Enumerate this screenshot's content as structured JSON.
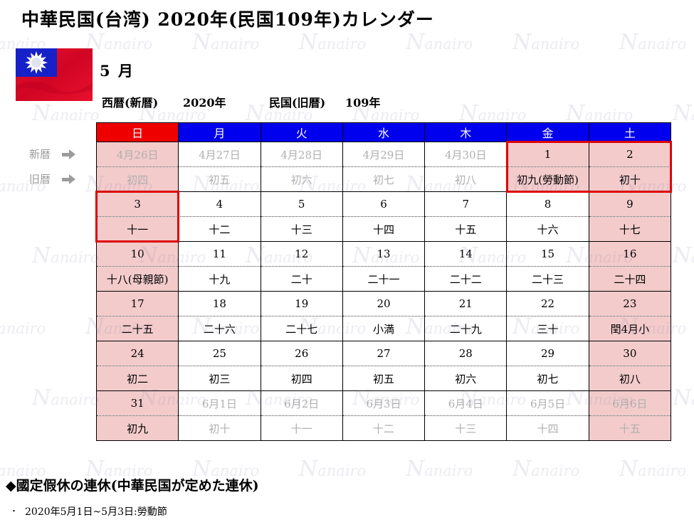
{
  "header": {
    "title": "中華民国(台湾) 2020年(民国109年)カレンダー",
    "month_label": "5 月",
    "western_era_label": "西暦(新暦)",
    "western_era_value": "2020年",
    "minguo_era_label": "民国(旧暦)",
    "minguo_era_value": "109年"
  },
  "flag": {
    "name": "taiwan-flag"
  },
  "row_labels": {
    "solar": "新暦",
    "lunar": "旧暦"
  },
  "colors": {
    "sunday_header_bg": "#ee0000",
    "weekday_header_bg": "#0000ee",
    "weekend_cell_bg": "#f3cbcb",
    "highlight_border": "#dd0000",
    "muted_text": "#afafaf",
    "row_label_text": "#9b9b9b"
  },
  "calendar": {
    "day_headers": [
      {
        "label": "日",
        "type": "sun"
      },
      {
        "label": "月",
        "type": "weekday"
      },
      {
        "label": "火",
        "type": "weekday"
      },
      {
        "label": "水",
        "type": "weekday"
      },
      {
        "label": "木",
        "type": "weekday"
      },
      {
        "label": "金",
        "type": "weekday"
      },
      {
        "label": "土",
        "type": "weekday"
      }
    ],
    "weeks": [
      {
        "dates": [
          {
            "t": "4月26日",
            "muted": true
          },
          {
            "t": "4月27日",
            "muted": true
          },
          {
            "t": "4月28日",
            "muted": true
          },
          {
            "t": "4月29日",
            "muted": true
          },
          {
            "t": "4月30日",
            "muted": true
          },
          {
            "t": "1",
            "holiday": true
          },
          {
            "t": "2",
            "holiday": true
          }
        ],
        "lunar": [
          {
            "t": "初四",
            "muted": true
          },
          {
            "t": "初五",
            "muted": true
          },
          {
            "t": "初六",
            "muted": true
          },
          {
            "t": "初七",
            "muted": true
          },
          {
            "t": "初八",
            "muted": true
          },
          {
            "t": "初九(勞動節)",
            "holiday": true
          },
          {
            "t": "初十",
            "holiday": true
          }
        ]
      },
      {
        "dates": [
          {
            "t": "3"
          },
          {
            "t": "4"
          },
          {
            "t": "5"
          },
          {
            "t": "6"
          },
          {
            "t": "7"
          },
          {
            "t": "8"
          },
          {
            "t": "9"
          }
        ],
        "lunar": [
          {
            "t": "十一"
          },
          {
            "t": "十二"
          },
          {
            "t": "十三"
          },
          {
            "t": "十四"
          },
          {
            "t": "十五"
          },
          {
            "t": "十六"
          },
          {
            "t": "十七"
          }
        ]
      },
      {
        "dates": [
          {
            "t": "10"
          },
          {
            "t": "11"
          },
          {
            "t": "12"
          },
          {
            "t": "13"
          },
          {
            "t": "14"
          },
          {
            "t": "15"
          },
          {
            "t": "16"
          }
        ],
        "lunar": [
          {
            "t": "十八(母親節)"
          },
          {
            "t": "十九"
          },
          {
            "t": "二十"
          },
          {
            "t": "二十一"
          },
          {
            "t": "二十二"
          },
          {
            "t": "二十三"
          },
          {
            "t": "二十四"
          }
        ]
      },
      {
        "dates": [
          {
            "t": "17"
          },
          {
            "t": "18"
          },
          {
            "t": "19"
          },
          {
            "t": "20"
          },
          {
            "t": "21"
          },
          {
            "t": "22"
          },
          {
            "t": "23"
          }
        ],
        "lunar": [
          {
            "t": "二十五"
          },
          {
            "t": "二十六"
          },
          {
            "t": "二十七"
          },
          {
            "t": "小満"
          },
          {
            "t": "二十九"
          },
          {
            "t": "三十"
          },
          {
            "t": "閏4月小"
          }
        ]
      },
      {
        "dates": [
          {
            "t": "24"
          },
          {
            "t": "25"
          },
          {
            "t": "26"
          },
          {
            "t": "27"
          },
          {
            "t": "28"
          },
          {
            "t": "29"
          },
          {
            "t": "30"
          }
        ],
        "lunar": [
          {
            "t": "初二"
          },
          {
            "t": "初三"
          },
          {
            "t": "初四"
          },
          {
            "t": "初五"
          },
          {
            "t": "初六"
          },
          {
            "t": "初七"
          },
          {
            "t": "初八"
          }
        ]
      },
      {
        "dates": [
          {
            "t": "31"
          },
          {
            "t": "6月1日",
            "muted": true
          },
          {
            "t": "6月2日",
            "muted": true
          },
          {
            "t": "6月3日",
            "muted": true
          },
          {
            "t": "6月4日",
            "muted": true
          },
          {
            "t": "6月5日",
            "muted": true
          },
          {
            "t": "6月6日",
            "muted": true
          }
        ],
        "lunar": [
          {
            "t": "初九"
          },
          {
            "t": "初十",
            "muted": true
          },
          {
            "t": "十一",
            "muted": true
          },
          {
            "t": "十二",
            "muted": true
          },
          {
            "t": "十三",
            "muted": true
          },
          {
            "t": "十四",
            "muted": true
          },
          {
            "t": "十五",
            "muted": true
          }
        ]
      }
    ],
    "highlights": [
      {
        "week": 0,
        "col_start": 5,
        "col_end": 6
      },
      {
        "week": 1,
        "col_start": 0,
        "col_end": 0
      }
    ]
  },
  "footer": {
    "heading": "◆國定假休の連休(中華民国が定めた連休)",
    "bullet_marker": "・",
    "bullet_text": "2020年5月1日~5月3日:勞動節"
  },
  "watermark": {
    "text": "Nanairo"
  }
}
